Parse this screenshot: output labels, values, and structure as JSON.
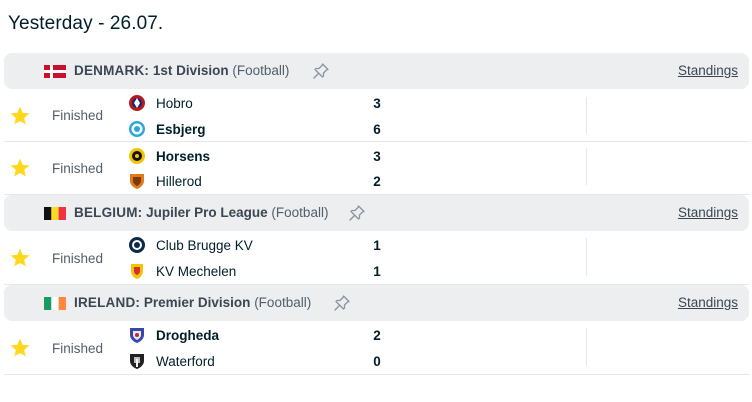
{
  "day": {
    "title": "Yesterday - 26.07."
  },
  "colors": {
    "star": "#ffd81d",
    "header_bg": "#eceef0",
    "text": "#001e28",
    "muted": "#525e69"
  },
  "leagues": [
    {
      "country": "DENMARK:",
      "name": "1st Division",
      "sport": "(Football)",
      "standings_label": "Standings",
      "flag": "denmark-flag",
      "matches": [
        {
          "status": "Finished",
          "home": {
            "name": "Hobro",
            "score": "3",
            "logo": "hobro-logo"
          },
          "away": {
            "name": "Esbjerg",
            "score": "6",
            "logo": "esbjerg-logo"
          }
        },
        {
          "status": "Finished",
          "home": {
            "name": "Horsens",
            "score": "3",
            "logo": "horsens-logo"
          },
          "away": {
            "name": "Hillerod",
            "score": "2",
            "logo": "hillerod-logo"
          }
        }
      ]
    },
    {
      "country": "BELGIUM:",
      "name": "Jupiler Pro League",
      "sport": "(Football)",
      "standings_label": "Standings",
      "flag": "belgium-flag",
      "matches": [
        {
          "status": "Finished",
          "home": {
            "name": "Club Brugge KV",
            "score": "1",
            "logo": "club-brugge-logo"
          },
          "away": {
            "name": "KV Mechelen",
            "score": "1",
            "logo": "kv-mechelen-logo"
          }
        }
      ]
    },
    {
      "country": "IRELAND:",
      "name": "Premier Division",
      "sport": "(Football)",
      "standings_label": "Standings",
      "flag": "ireland-flag",
      "matches": [
        {
          "status": "Finished",
          "home": {
            "name": "Drogheda",
            "score": "2",
            "logo": "drogheda-logo"
          },
          "away": {
            "name": "Waterford",
            "score": "0",
            "logo": "waterford-logo"
          }
        }
      ]
    }
  ]
}
